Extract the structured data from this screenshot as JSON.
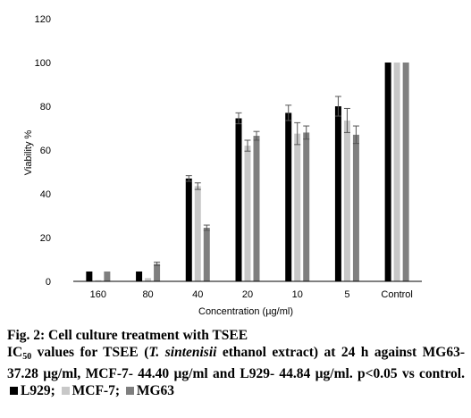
{
  "chart_data": {
    "type": "bar",
    "categories": [
      "160",
      "80",
      "40",
      "20",
      "10",
      "5",
      "Control"
    ],
    "series": [
      {
        "name": "L929",
        "color": "#000000",
        "values": [
          4.5,
          4.5,
          47,
          74.5,
          77,
          80,
          100
        ],
        "errors": [
          0,
          0,
          1.3,
          2.5,
          3.5,
          4.5,
          0
        ]
      },
      {
        "name": "MCF-7",
        "color": "#c8c8c8",
        "values": [
          0.5,
          1.5,
          43.5,
          62,
          67.5,
          73.5,
          100
        ],
        "errors": [
          0,
          0,
          1.5,
          2.5,
          5,
          5.5,
          0
        ]
      },
      {
        "name": "MG63",
        "color": "#7f7f7f",
        "values": [
          4.5,
          8,
          24.5,
          66.5,
          68,
          67,
          100
        ],
        "errors": [
          0,
          0.8,
          1.2,
          2,
          3,
          4,
          0
        ]
      }
    ],
    "xlabel": "Concentration (µg/ml)",
    "ylabel": "Viability %",
    "ylim": [
      0,
      120
    ],
    "yticks": [
      0,
      20,
      40,
      60,
      80,
      100,
      120
    ],
    "grid": false
  },
  "caption": {
    "title": "Fig. 2: Cell culture treatment with TSEE",
    "ic": "IC",
    "ic_sub": "50",
    "text_1": " values for TSEE (",
    "species": "T. sintenisii",
    "text_2": " ethanol extract) at 24 h against MG63- 37.28 µg/ml, MCF-7- 44.40 µg/ml and L929- 44.84 µg/ml. p<0.05 vs control. ",
    "legend_l929": "L929;",
    "legend_mcf7": "MCF-7;",
    "legend_mg63": "MG63"
  }
}
